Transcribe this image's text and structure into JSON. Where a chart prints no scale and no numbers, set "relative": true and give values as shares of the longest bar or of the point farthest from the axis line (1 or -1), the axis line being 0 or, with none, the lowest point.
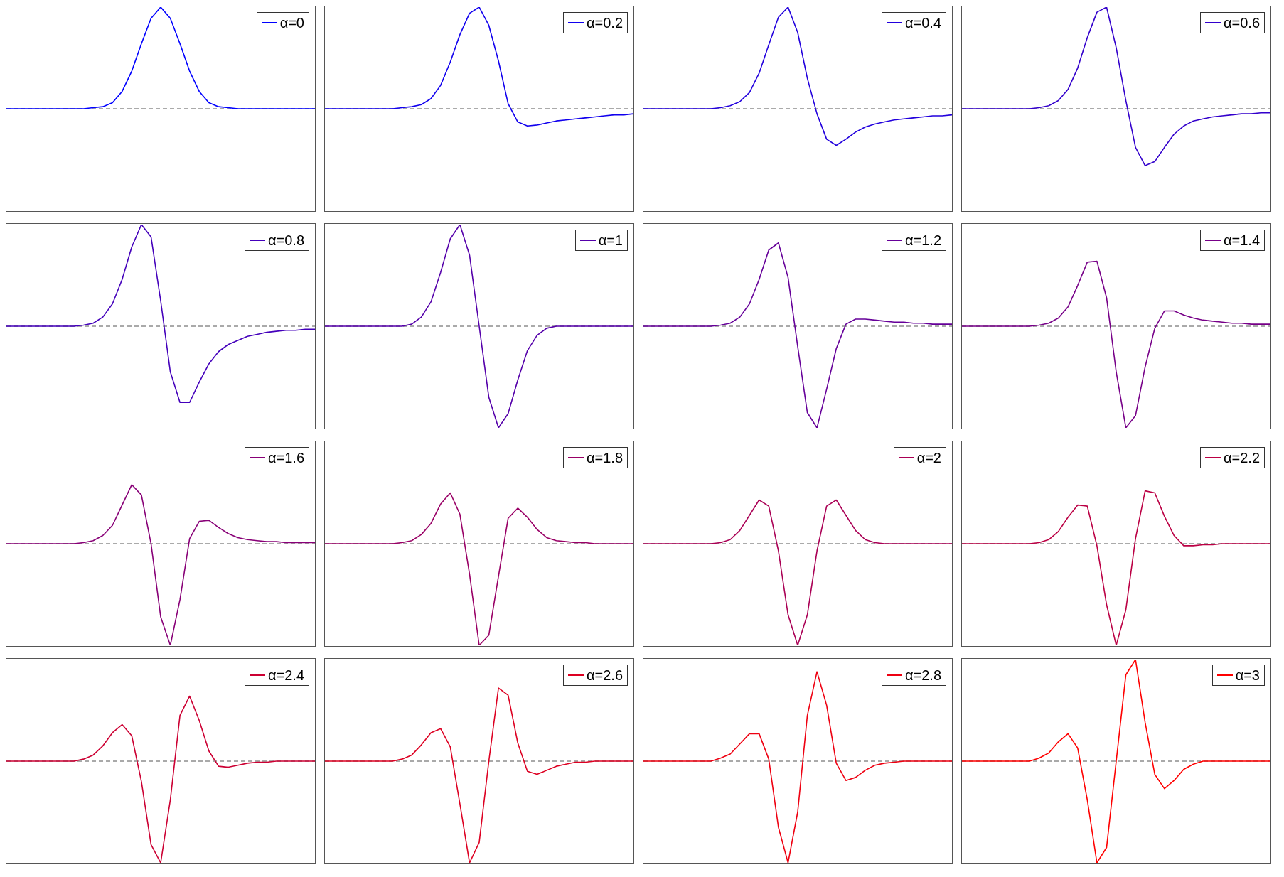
{
  "chart_data": [
    {
      "type": "line",
      "relative": true,
      "legend": "top right",
      "categories": [
        null,
        null,
        null,
        null,
        null,
        null,
        null,
        null,
        null,
        null,
        null,
        null,
        null,
        null,
        null,
        null,
        null,
        null,
        null,
        null,
        null,
        null,
        null,
        null,
        null,
        null,
        null,
        null,
        null,
        null,
        null,
        null,
        null
      ],
      "ref_lines": [
        {
          "axis": "y",
          "value": 0,
          "color": "#555555",
          "line_style": "dashed"
        }
      ],
      "series": [
        {
          "name": "α=0",
          "color": "#0000ff",
          "values": [
            0,
            0,
            0,
            0,
            0,
            0,
            0,
            0,
            0,
            0.01,
            0.02,
            0.06,
            0.17,
            0.37,
            0.64,
            0.89,
            1,
            0.89,
            0.64,
            0.37,
            0.17,
            0.06,
            0.02,
            0.01,
            0,
            0,
            0,
            0,
            0,
            0,
            0,
            0,
            0
          ]
        }
      ]
    },
    {
      "type": "line",
      "relative": true,
      "legend": "top right",
      "categories": [
        null,
        null,
        null,
        null,
        null,
        null,
        null,
        null,
        null,
        null,
        null,
        null,
        null,
        null,
        null,
        null,
        null,
        null,
        null,
        null,
        null,
        null,
        null,
        null,
        null,
        null,
        null,
        null,
        null,
        null,
        null,
        null,
        null
      ],
      "ref_lines": [
        {
          "axis": "y",
          "value": 0,
          "color": "#555555",
          "line_style": "dashed"
        }
      ],
      "series": [
        {
          "name": "α=0.2",
          "color": "#1100ee",
          "values": [
            0,
            0,
            0,
            0,
            0,
            0,
            0,
            0,
            0.01,
            0.02,
            0.04,
            0.1,
            0.23,
            0.46,
            0.73,
            0.94,
            1,
            0.82,
            0.47,
            0.05,
            -0.13,
            -0.17,
            -0.16,
            -0.14,
            -0.12,
            -0.11,
            -0.1,
            -0.09,
            -0.08,
            -0.07,
            -0.06,
            -0.06,
            -0.05
          ]
        }
      ]
    },
    {
      "type": "line",
      "relative": true,
      "legend": "top right",
      "categories": [
        null,
        null,
        null,
        null,
        null,
        null,
        null,
        null,
        null,
        null,
        null,
        null,
        null,
        null,
        null,
        null,
        null,
        null,
        null,
        null,
        null,
        null,
        null,
        null,
        null,
        null,
        null,
        null,
        null,
        null,
        null,
        null,
        null
      ],
      "ref_lines": [
        {
          "axis": "y",
          "value": 0,
          "color": "#555555",
          "line_style": "dashed"
        }
      ],
      "series": [
        {
          "name": "α=0.4",
          "color": "#2200dd",
          "values": [
            0,
            0,
            0,
            0,
            0,
            0,
            0,
            0,
            0.01,
            0.03,
            0.07,
            0.16,
            0.35,
            0.63,
            0.9,
            1,
            0.75,
            0.3,
            -0.05,
            -0.3,
            -0.36,
            -0.3,
            -0.23,
            -0.18,
            -0.15,
            -0.13,
            -0.11,
            -0.1,
            -0.09,
            -0.08,
            -0.07,
            -0.07,
            -0.06
          ]
        }
      ]
    },
    {
      "type": "line",
      "relative": true,
      "legend": "top right",
      "categories": [
        null,
        null,
        null,
        null,
        null,
        null,
        null,
        null,
        null,
        null,
        null,
        null,
        null,
        null,
        null,
        null,
        null,
        null,
        null,
        null,
        null,
        null,
        null,
        null,
        null,
        null,
        null,
        null,
        null,
        null,
        null,
        null,
        null
      ],
      "ref_lines": [
        {
          "axis": "y",
          "value": 0,
          "color": "#555555",
          "line_style": "dashed"
        }
      ],
      "series": [
        {
          "name": "α=0.6",
          "color": "#3300cc",
          "values": [
            0,
            0,
            0,
            0,
            0,
            0,
            0,
            0,
            0.01,
            0.03,
            0.08,
            0.19,
            0.4,
            0.7,
            0.95,
            1,
            0.6,
            0.08,
            -0.38,
            -0.56,
            -0.52,
            -0.38,
            -0.25,
            -0.17,
            -0.12,
            -0.1,
            -0.08,
            -0.07,
            -0.06,
            -0.05,
            -0.05,
            -0.04,
            -0.04
          ]
        }
      ]
    },
    {
      "type": "line",
      "relative": true,
      "legend": "top right",
      "categories": [
        null,
        null,
        null,
        null,
        null,
        null,
        null,
        null,
        null,
        null,
        null,
        null,
        null,
        null,
        null,
        null,
        null,
        null,
        null,
        null,
        null,
        null,
        null,
        null,
        null,
        null,
        null,
        null,
        null,
        null,
        null,
        null,
        null
      ],
      "ref_lines": [
        {
          "axis": "y",
          "value": 0,
          "color": "#555555",
          "line_style": "dashed"
        }
      ],
      "series": [
        {
          "name": "α=0.8",
          "color": "#4400bb",
          "values": [
            0,
            0,
            0,
            0,
            0,
            0,
            0,
            0,
            0.01,
            0.03,
            0.09,
            0.22,
            0.46,
            0.78,
            1,
            0.88,
            0.25,
            -0.45,
            -0.75,
            -0.75,
            -0.55,
            -0.37,
            -0.25,
            -0.18,
            -0.14,
            -0.1,
            -0.08,
            -0.06,
            -0.05,
            -0.04,
            -0.04,
            -0.03,
            -0.03
          ]
        }
      ]
    },
    {
      "type": "line",
      "relative": true,
      "legend": "top right",
      "categories": [
        null,
        null,
        null,
        null,
        null,
        null,
        null,
        null,
        null,
        null,
        null,
        null,
        null,
        null,
        null,
        null,
        null,
        null,
        null,
        null,
        null,
        null,
        null,
        null,
        null,
        null,
        null,
        null,
        null,
        null,
        null,
        null,
        null
      ],
      "ref_lines": [
        {
          "axis": "y",
          "value": 0,
          "color": "#555555",
          "line_style": "dashed"
        }
      ],
      "series": [
        {
          "name": "α=1",
          "color": "#5500aa",
          "values": [
            0,
            0,
            0,
            0,
            0,
            0,
            0,
            0,
            0,
            0.02,
            0.09,
            0.24,
            0.53,
            0.86,
            1,
            0.7,
            0,
            -0.7,
            -1,
            -0.86,
            -0.53,
            -0.24,
            -0.09,
            -0.02,
            0,
            0,
            0,
            0,
            0,
            0,
            0,
            0,
            0
          ]
        }
      ]
    },
    {
      "type": "line",
      "relative": true,
      "legend": "top right",
      "categories": [
        null,
        null,
        null,
        null,
        null,
        null,
        null,
        null,
        null,
        null,
        null,
        null,
        null,
        null,
        null,
        null,
        null,
        null,
        null,
        null,
        null,
        null,
        null,
        null,
        null,
        null,
        null,
        null,
        null,
        null,
        null,
        null,
        null
      ],
      "ref_lines": [
        {
          "axis": "y",
          "value": 0,
          "color": "#555555",
          "line_style": "dashed"
        }
      ],
      "series": [
        {
          "name": "α=1.2",
          "color": "#660099",
          "values": [
            0,
            0,
            0,
            0,
            0,
            0,
            0,
            0,
            0.01,
            0.03,
            0.09,
            0.22,
            0.46,
            0.75,
            0.82,
            0.48,
            -0.2,
            -0.85,
            -1,
            -0.62,
            -0.22,
            0.02,
            0.07,
            0.07,
            0.06,
            0.05,
            0.04,
            0.04,
            0.03,
            0.03,
            0.02,
            0.02,
            0.02
          ]
        }
      ]
    },
    {
      "type": "line",
      "relative": true,
      "legend": "top right",
      "categories": [
        null,
        null,
        null,
        null,
        null,
        null,
        null,
        null,
        null,
        null,
        null,
        null,
        null,
        null,
        null,
        null,
        null,
        null,
        null,
        null,
        null,
        null,
        null,
        null,
        null,
        null,
        null,
        null,
        null,
        null,
        null,
        null,
        null
      ],
      "ref_lines": [
        {
          "axis": "y",
          "value": 0,
          "color": "#555555",
          "line_style": "dashed"
        }
      ],
      "series": [
        {
          "name": "α=1.4",
          "color": "#770088",
          "values": [
            0,
            0,
            0,
            0,
            0,
            0,
            0,
            0,
            0.01,
            0.03,
            0.08,
            0.19,
            0.4,
            0.63,
            0.64,
            0.28,
            -0.45,
            -1,
            -0.88,
            -0.4,
            -0.02,
            0.15,
            0.15,
            0.11,
            0.08,
            0.06,
            0.05,
            0.04,
            0.03,
            0.03,
            0.02,
            0.02,
            0.02
          ]
        }
      ]
    },
    {
      "type": "line",
      "relative": true,
      "legend": "top right",
      "categories": [
        null,
        null,
        null,
        null,
        null,
        null,
        null,
        null,
        null,
        null,
        null,
        null,
        null,
        null,
        null,
        null,
        null,
        null,
        null,
        null,
        null,
        null,
        null,
        null,
        null,
        null,
        null,
        null,
        null,
        null,
        null,
        null,
        null
      ],
      "ref_lines": [
        {
          "axis": "y",
          "value": 0,
          "color": "#555555",
          "line_style": "dashed"
        }
      ],
      "series": [
        {
          "name": "α=1.6",
          "color": "#880077",
          "values": [
            0,
            0,
            0,
            0,
            0,
            0,
            0,
            0,
            0.01,
            0.03,
            0.08,
            0.18,
            0.38,
            0.58,
            0.48,
            0,
            -0.72,
            -1,
            -0.55,
            0.05,
            0.22,
            0.23,
            0.16,
            0.1,
            0.06,
            0.04,
            0.03,
            0.02,
            0.02,
            0.01,
            0.01,
            0.01,
            0.01
          ]
        }
      ]
    },
    {
      "type": "line",
      "relative": true,
      "legend": "top right",
      "categories": [
        null,
        null,
        null,
        null,
        null,
        null,
        null,
        null,
        null,
        null,
        null,
        null,
        null,
        null,
        null,
        null,
        null,
        null,
        null,
        null,
        null,
        null,
        null,
        null,
        null,
        null,
        null,
        null,
        null,
        null,
        null,
        null,
        null
      ],
      "ref_lines": [
        {
          "axis": "y",
          "value": 0,
          "color": "#555555",
          "line_style": "dashed"
        }
      ],
      "series": [
        {
          "name": "α=1.8",
          "color": "#990066",
          "values": [
            0,
            0,
            0,
            0,
            0,
            0,
            0,
            0,
            0.01,
            0.03,
            0.09,
            0.2,
            0.39,
            0.5,
            0.29,
            -0.3,
            -1,
            -0.9,
            -0.32,
            0.25,
            0.35,
            0.26,
            0.14,
            0.06,
            0.03,
            0.02,
            0.01,
            0.01,
            0,
            0,
            0,
            0,
            0
          ]
        }
      ]
    },
    {
      "type": "line",
      "relative": true,
      "legend": "top right",
      "categories": [
        null,
        null,
        null,
        null,
        null,
        null,
        null,
        null,
        null,
        null,
        null,
        null,
        null,
        null,
        null,
        null,
        null,
        null,
        null,
        null,
        null,
        null,
        null,
        null,
        null,
        null,
        null,
        null,
        null,
        null,
        null,
        null,
        null
      ],
      "ref_lines": [
        {
          "axis": "y",
          "value": 0,
          "color": "#555555",
          "line_style": "dashed"
        }
      ],
      "series": [
        {
          "name": "α=2",
          "color": "#aa0055",
          "values": [
            0,
            0,
            0,
            0,
            0,
            0,
            0,
            0,
            0.01,
            0.04,
            0.13,
            0.28,
            0.43,
            0.37,
            -0.07,
            -0.7,
            -1,
            -0.7,
            -0.07,
            0.37,
            0.43,
            0.28,
            0.13,
            0.04,
            0.01,
            0,
            0,
            0,
            0,
            0,
            0,
            0,
            0
          ]
        }
      ]
    },
    {
      "type": "line",
      "relative": true,
      "legend": "top right",
      "categories": [
        null,
        null,
        null,
        null,
        null,
        null,
        null,
        null,
        null,
        null,
        null,
        null,
        null,
        null,
        null,
        null,
        null,
        null,
        null,
        null,
        null,
        null,
        null,
        null,
        null,
        null,
        null,
        null,
        null,
        null,
        null,
        null,
        null
      ],
      "ref_lines": [
        {
          "axis": "y",
          "value": 0,
          "color": "#555555",
          "line_style": "dashed"
        }
      ],
      "series": [
        {
          "name": "α=2.2",
          "color": "#bb0044",
          "values": [
            0,
            0,
            0,
            0,
            0,
            0,
            0,
            0,
            0.01,
            0.04,
            0.12,
            0.26,
            0.38,
            0.37,
            -0.02,
            -0.6,
            -1,
            -0.65,
            0.05,
            0.52,
            0.5,
            0.27,
            0.08,
            -0.02,
            -0.02,
            -0.01,
            -0.01,
            0,
            0,
            0,
            0,
            0,
            0
          ]
        }
      ]
    },
    {
      "type": "line",
      "relative": true,
      "legend": "top right",
      "categories": [
        null,
        null,
        null,
        null,
        null,
        null,
        null,
        null,
        null,
        null,
        null,
        null,
        null,
        null,
        null,
        null,
        null,
        null,
        null,
        null,
        null,
        null,
        null,
        null,
        null,
        null,
        null,
        null,
        null,
        null,
        null,
        null,
        null
      ],
      "ref_lines": [
        {
          "axis": "y",
          "value": 0,
          "color": "#555555",
          "line_style": "dashed"
        }
      ],
      "series": [
        {
          "name": "α=2.4",
          "color": "#cc0033",
          "values": [
            0,
            0,
            0,
            0,
            0,
            0,
            0,
            0,
            0.02,
            0.06,
            0.15,
            0.28,
            0.36,
            0.25,
            -0.2,
            -0.82,
            -1,
            -0.38,
            0.45,
            0.64,
            0.4,
            0.1,
            -0.05,
            -0.06,
            -0.04,
            -0.02,
            -0.01,
            -0.01,
            0,
            0,
            0,
            0,
            0
          ]
        }
      ]
    },
    {
      "type": "line",
      "relative": true,
      "legend": "top right",
      "categories": [
        null,
        null,
        null,
        null,
        null,
        null,
        null,
        null,
        null,
        null,
        null,
        null,
        null,
        null,
        null,
        null,
        null,
        null,
        null,
        null,
        null,
        null,
        null,
        null,
        null,
        null,
        null,
        null,
        null,
        null,
        null,
        null,
        null
      ],
      "ref_lines": [
        {
          "axis": "y",
          "value": 0,
          "color": "#555555",
          "line_style": "dashed"
        }
      ],
      "series": [
        {
          "name": "α=2.6",
          "color": "#dd0022",
          "values": [
            0,
            0,
            0,
            0,
            0,
            0,
            0,
            0,
            0.02,
            0.06,
            0.16,
            0.28,
            0.32,
            0.14,
            -0.42,
            -1,
            -0.8,
            0,
            0.72,
            0.65,
            0.18,
            -0.1,
            -0.13,
            -0.09,
            -0.05,
            -0.03,
            -0.01,
            -0.01,
            0,
            0,
            0,
            0,
            0
          ]
        }
      ]
    },
    {
      "type": "line",
      "relative": true,
      "legend": "top right",
      "categories": [
        null,
        null,
        null,
        null,
        null,
        null,
        null,
        null,
        null,
        null,
        null,
        null,
        null,
        null,
        null,
        null,
        null,
        null,
        null,
        null,
        null,
        null,
        null,
        null,
        null,
        null,
        null,
        null,
        null,
        null,
        null,
        null,
        null
      ],
      "ref_lines": [
        {
          "axis": "y",
          "value": 0,
          "color": "#555555",
          "line_style": "dashed"
        }
      ],
      "series": [
        {
          "name": "α=2.8",
          "color": "#ee0011",
          "values": [
            0,
            0,
            0,
            0,
            0,
            0,
            0,
            0,
            0.03,
            0.07,
            0.17,
            0.27,
            0.27,
            0.02,
            -0.65,
            -1,
            -0.5,
            0.45,
            0.88,
            0.55,
            -0.02,
            -0.19,
            -0.16,
            -0.09,
            -0.04,
            -0.02,
            -0.01,
            0,
            0,
            0,
            0,
            0,
            0
          ]
        }
      ]
    },
    {
      "type": "line",
      "relative": true,
      "legend": "top right",
      "categories": [
        null,
        null,
        null,
        null,
        null,
        null,
        null,
        null,
        null,
        null,
        null,
        null,
        null,
        null,
        null,
        null,
        null,
        null,
        null,
        null,
        null,
        null,
        null,
        null,
        null,
        null,
        null,
        null,
        null,
        null,
        null,
        null,
        null
      ],
      "ref_lines": [
        {
          "axis": "y",
          "value": 0,
          "color": "#555555",
          "line_style": "dashed"
        }
      ],
      "series": [
        {
          "name": "α=3",
          "color": "#ff0000",
          "values": [
            0,
            0,
            0,
            0,
            0,
            0,
            0,
            0,
            0.03,
            0.08,
            0.19,
            0.27,
            0.13,
            -0.38,
            -1,
            -0.85,
            0,
            0.85,
            1,
            0.38,
            -0.13,
            -0.27,
            -0.19,
            -0.08,
            -0.03,
            0,
            0,
            0,
            0,
            0,
            0,
            0,
            0
          ]
        }
      ]
    }
  ]
}
